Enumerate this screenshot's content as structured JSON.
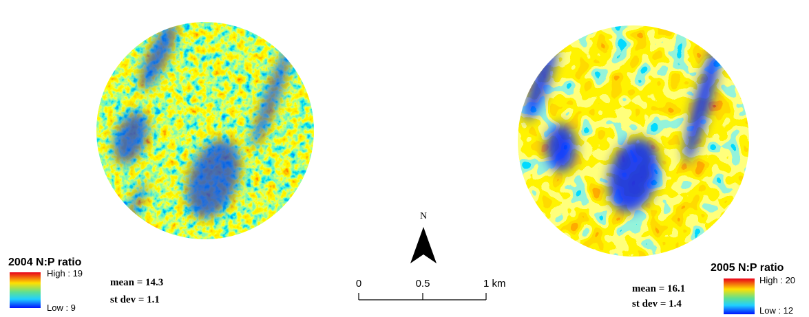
{
  "maps": [
    {
      "title": "2004 N:P ratio",
      "legend_high": "High : 19",
      "legend_low": "Low : 9",
      "mean": "mean = 14.3",
      "st_dev": "st dev = 1.1"
    },
    {
      "title": "2005 N:P ratio",
      "legend_high": "High : 20",
      "legend_low": "Low : 12",
      "mean": "mean = 16.1",
      "st_dev": "st dev = 1.4"
    }
  ],
  "north": "N",
  "scale_labels": [
    "0",
    "0.5",
    "1 km"
  ]
}
